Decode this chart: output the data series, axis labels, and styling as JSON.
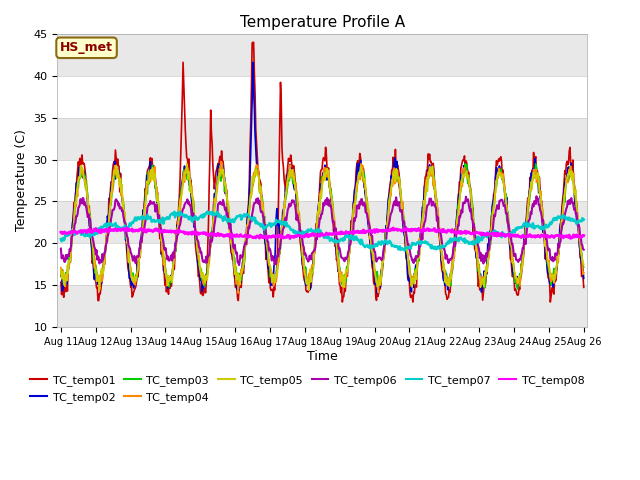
{
  "title": "Temperature Profile A",
  "xlabel": "Time",
  "ylabel": "Temperature (C)",
  "ylim": [
    10,
    45
  ],
  "annotation": "HS_met",
  "plot_bg_color": "#f0f0f0",
  "series_colors": [
    "#cc0000",
    "#0000cc",
    "#00cc00",
    "#ff8800",
    "#cccc00",
    "#aa00aa",
    "#00cccc",
    "#ff00ff"
  ],
  "series_names": [
    "TC_temp01",
    "TC_temp02",
    "TC_temp03",
    "TC_temp04",
    "TC_temp05",
    "TC_temp06",
    "TC_temp07",
    "TC_temp08"
  ],
  "x_tick_labels": [
    "Aug 11",
    "Aug 12",
    "Aug 13",
    "Aug 14",
    "Aug 15",
    "Aug 16",
    "Aug 17",
    "Aug 18",
    "Aug 19",
    "Aug 20",
    "Aug 21",
    "Aug 22",
    "Aug 23",
    "Aug 24",
    "Aug 25",
    "Aug 26"
  ],
  "yticks": [
    10,
    15,
    20,
    25,
    30,
    35,
    40,
    45
  ],
  "n_points": 720,
  "n_days": 15
}
